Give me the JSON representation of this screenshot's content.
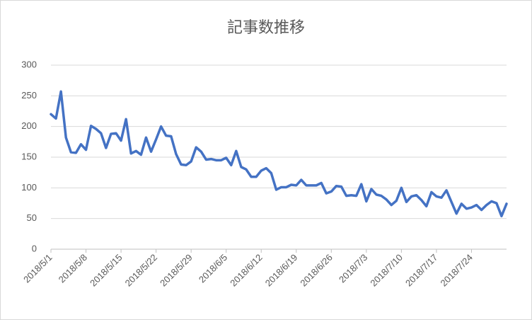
{
  "chart_data": {
    "type": "line",
    "title": "記事数推移",
    "categories": [
      "2018/5/1",
      null,
      null,
      null,
      null,
      null,
      null,
      "2018/5/8",
      null,
      null,
      null,
      null,
      null,
      null,
      "2018/5/15",
      null,
      null,
      null,
      null,
      null,
      null,
      "2018/5/22",
      null,
      null,
      null,
      null,
      null,
      null,
      "2018/5/29",
      null,
      null,
      null,
      null,
      null,
      null,
      "2018/6/5",
      null,
      null,
      null,
      null,
      null,
      null,
      "2018/6/12",
      null,
      null,
      null,
      null,
      null,
      null,
      "2018/6/19",
      null,
      null,
      null,
      null,
      null,
      null,
      "2018/6/26",
      null,
      null,
      null,
      null,
      null,
      null,
      "2018/7/3",
      null,
      null,
      null,
      null,
      null,
      null,
      "2018/7/10",
      null,
      null,
      null,
      null,
      null,
      null,
      "2018/7/17",
      null,
      null,
      null,
      null,
      null,
      null,
      "2018/7/24",
      null,
      null,
      null,
      null,
      null,
      null,
      null
    ],
    "values": [
      220,
      213,
      257,
      182,
      158,
      157,
      171,
      162,
      201,
      196,
      189,
      165,
      188,
      189,
      177,
      212,
      156,
      160,
      154,
      182,
      159,
      179,
      200,
      185,
      184,
      155,
      138,
      137,
      143,
      166,
      159,
      146,
      147,
      145,
      145,
      149,
      137,
      160,
      134,
      130,
      118,
      118,
      128,
      132,
      124,
      97,
      101,
      101,
      105,
      104,
      113,
      104,
      104,
      104,
      108,
      91,
      94,
      103,
      102,
      87,
      88,
      87,
      106,
      78,
      98,
      89,
      87,
      81,
      72,
      79,
      100,
      77,
      86,
      88,
      80,
      70,
      93,
      86,
      84,
      96,
      77,
      58,
      74,
      66,
      68,
      72,
      64,
      72,
      78,
      75,
      54,
      74
    ],
    "color": "#4472c4",
    "ylim": [
      0,
      300
    ],
    "yticks": [
      0,
      50,
      100,
      150,
      200,
      250,
      300
    ],
    "grid": true
  }
}
